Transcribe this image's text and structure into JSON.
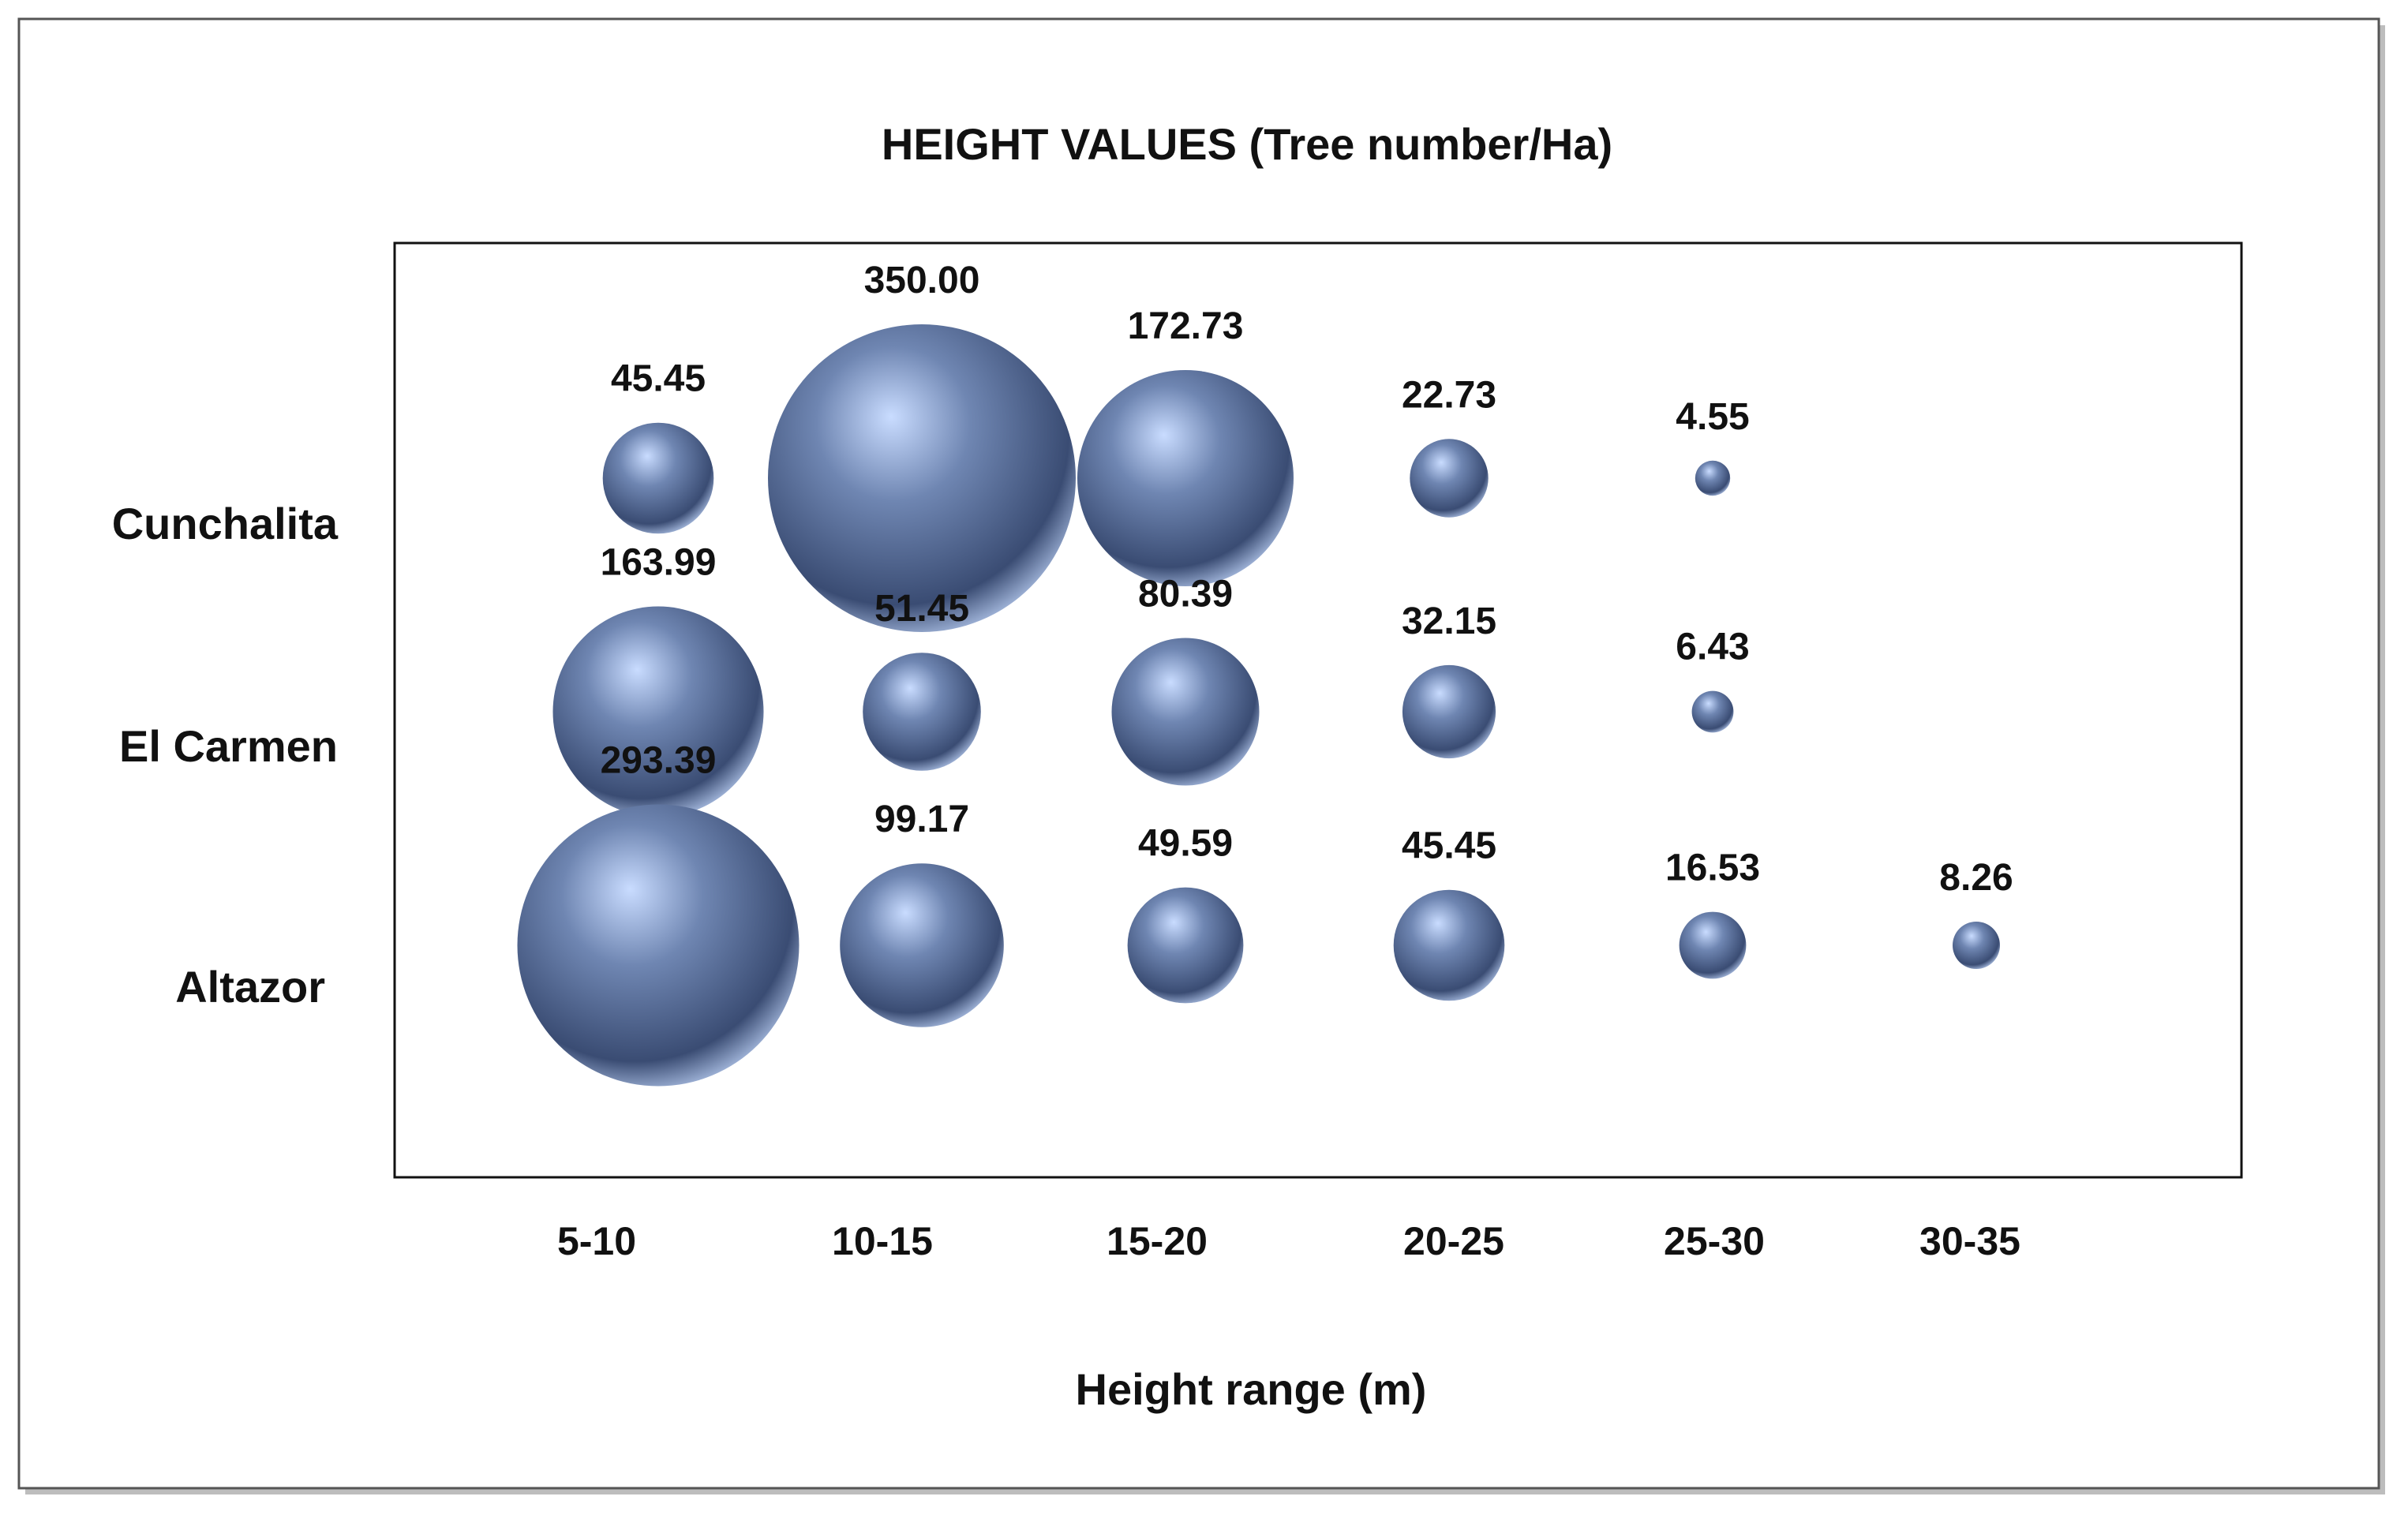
{
  "chart_data": {
    "type": "bubble",
    "title": "HEIGHT VALUES (Tree number/Ha)",
    "xlabel": "Height range (m)",
    "ylabel": "",
    "categories": [
      "5-10",
      "10-15",
      "15-20",
      "20-25",
      "25-30",
      "30-35"
    ],
    "rows": [
      "Cunchalita",
      "El Carmen",
      "Altazor"
    ],
    "series": [
      {
        "name": "Cunchalita",
        "values": [
          45.45,
          350.0,
          172.73,
          22.73,
          4.55,
          null
        ]
      },
      {
        "name": "El Carmen",
        "values": [
          163.99,
          51.45,
          80.39,
          32.15,
          6.43,
          null
        ]
      },
      {
        "name": "Altazor",
        "values": [
          293.39,
          99.17,
          49.59,
          45.45,
          16.53,
          8.26
        ]
      }
    ],
    "value_labels": [
      [
        "45.45",
        "350.00",
        "172.73",
        "22.73",
        "4.55",
        ""
      ],
      [
        "163.99",
        "51.45",
        "80.39",
        "32.15",
        "6.43",
        ""
      ],
      [
        "293.39",
        "99.17",
        "49.59",
        "45.45",
        "16.53",
        "8.26"
      ]
    ],
    "bubble_color": "#6f86b2",
    "highlight_color": "#c9dcff",
    "shadow_color": "#3a4c73",
    "grid": false,
    "legend": "none"
  }
}
